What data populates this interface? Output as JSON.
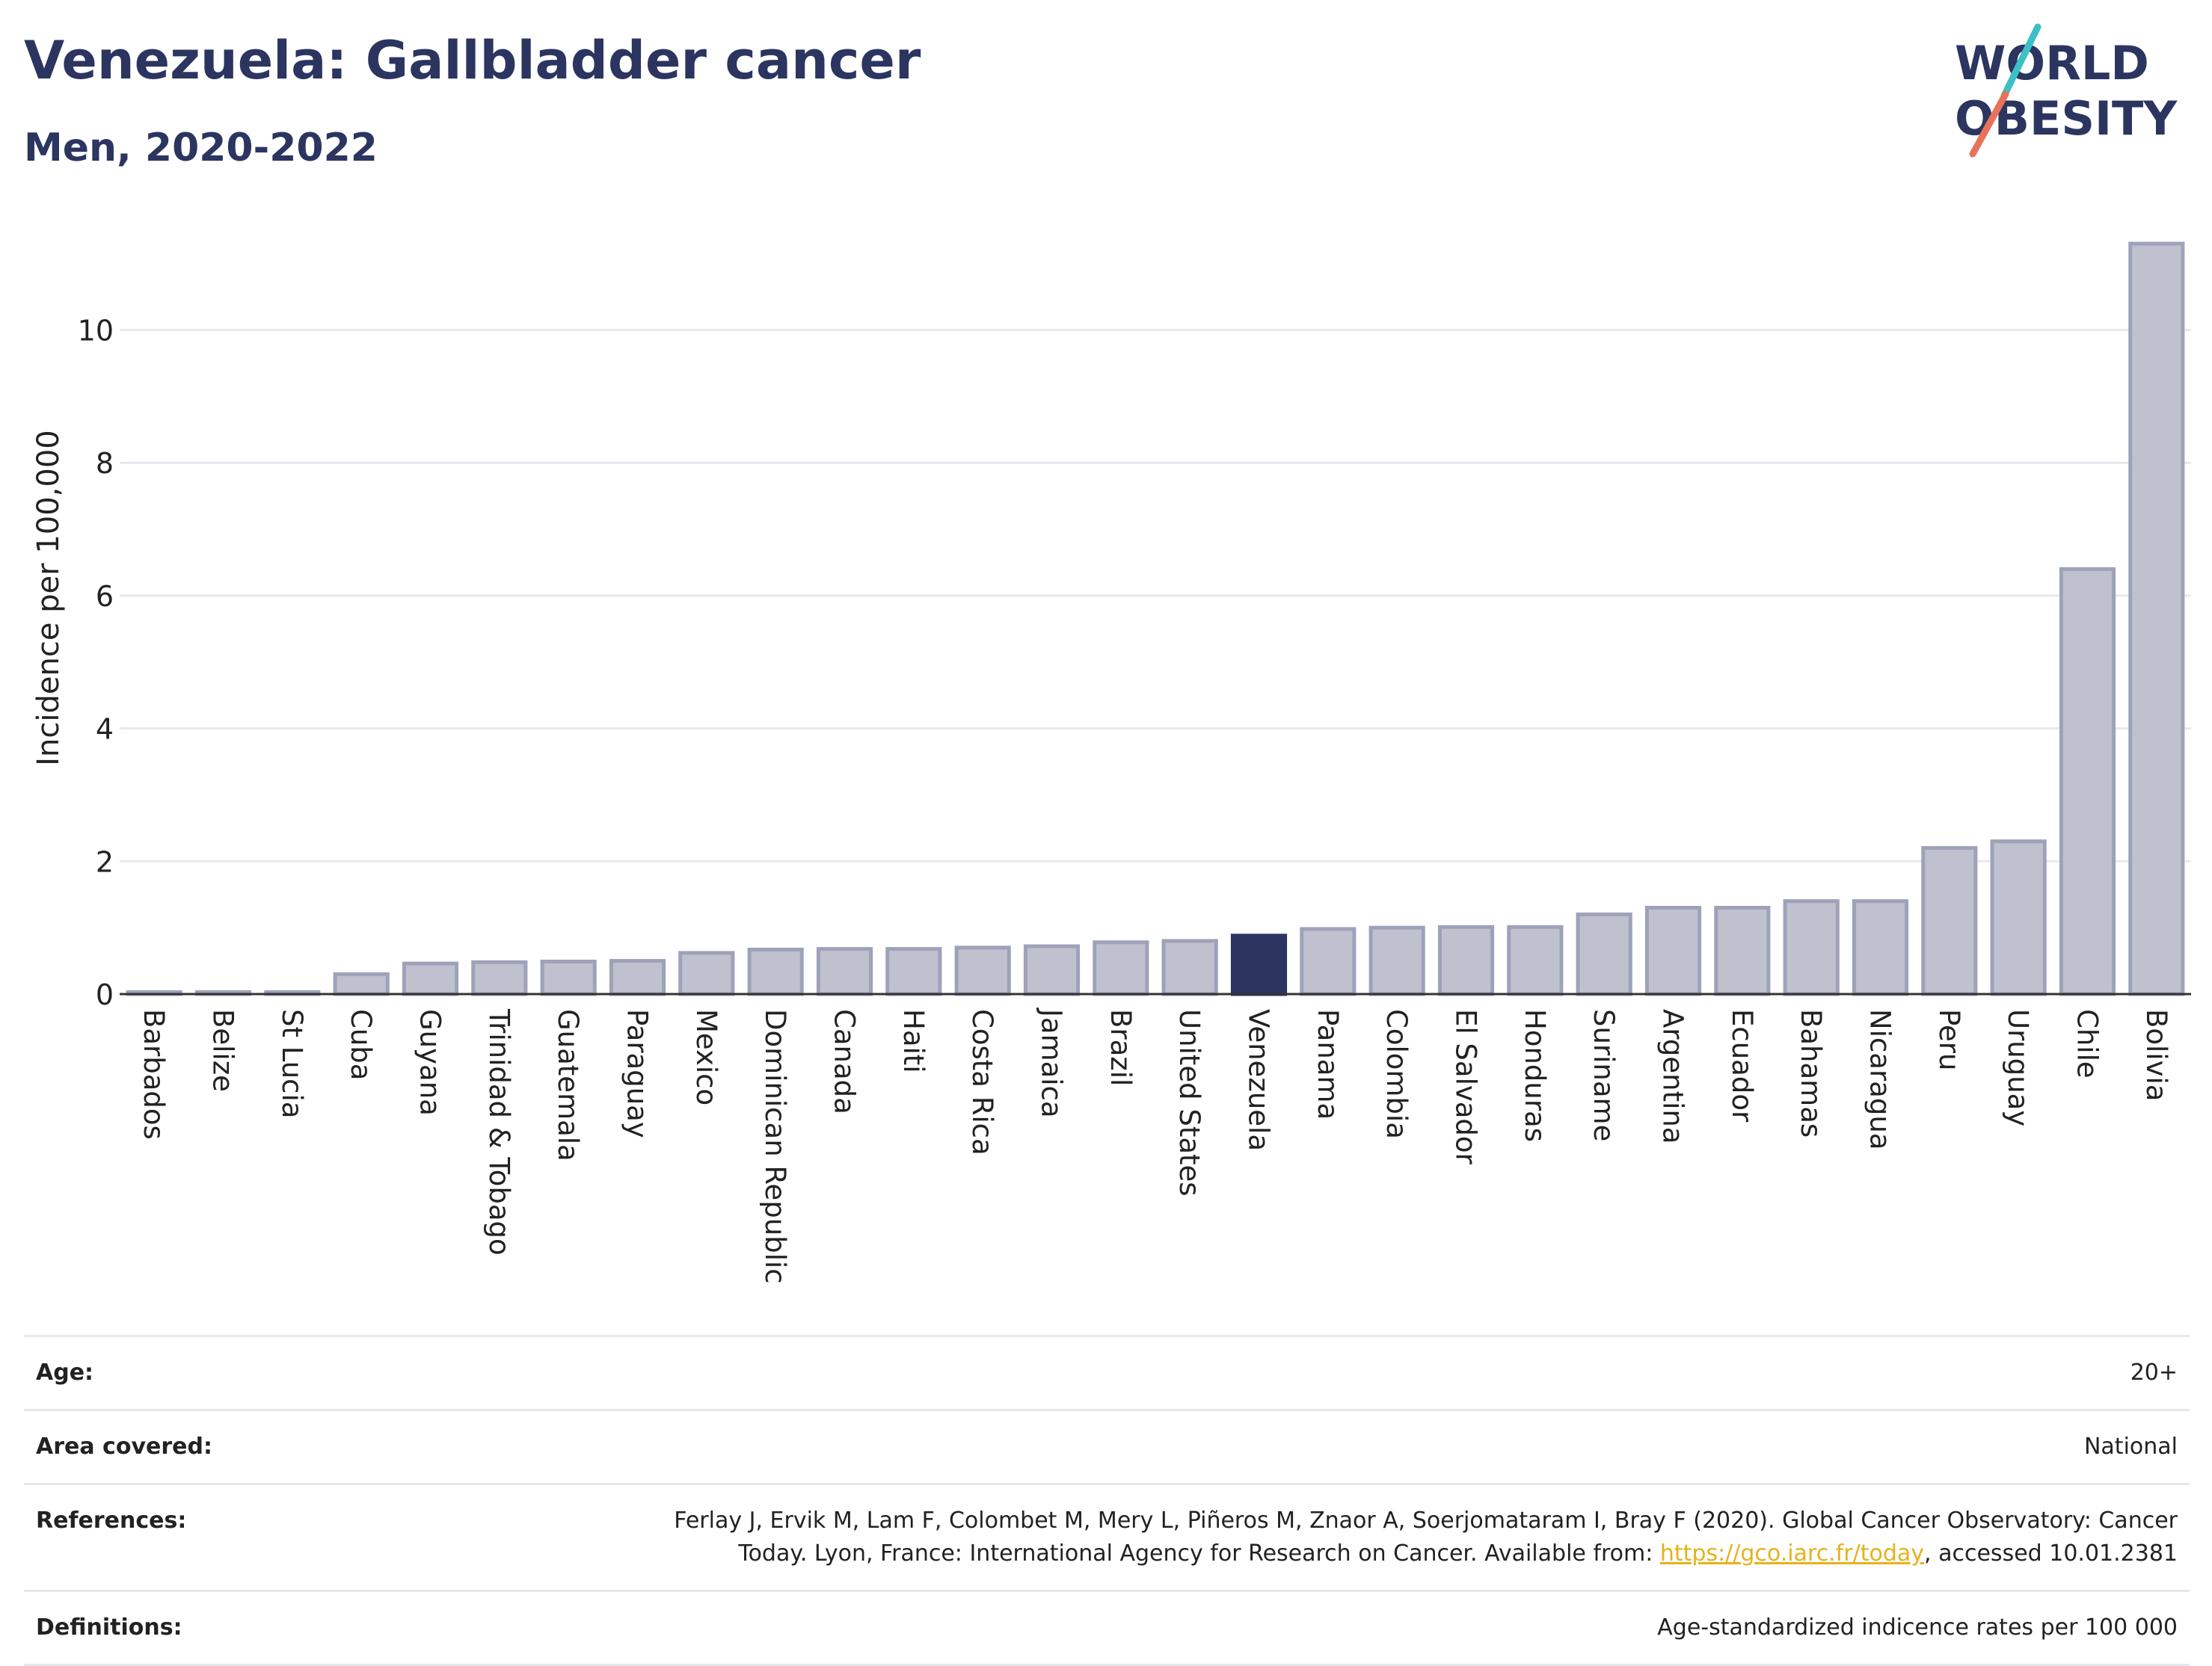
{
  "header": {
    "title": "Venezuela: Gallbladder cancer",
    "subtitle": "Men, 2020-2022"
  },
  "logo": {
    "line1": "WORLD",
    "line2": "OBESITY",
    "colors": {
      "text": "#2b3560",
      "slash_top": "#3cc0c6",
      "slash_bottom": "#e8735a"
    }
  },
  "chart_data": {
    "type": "bar",
    "title": "",
    "xlabel": "",
    "ylabel": "Incidence per 100,000",
    "ylim": [
      0,
      11.3
    ],
    "yticks": [
      0,
      2,
      4,
      6,
      8,
      10
    ],
    "grid": true,
    "highlight": "Venezuela",
    "colors": {
      "bar": "#bfc1cf",
      "bar_edge": "#9ea2b9",
      "highlight": "#2b3560",
      "grid": "#e6e9ee",
      "axis": "#333333"
    },
    "categories": [
      "Barbados",
      "Belize",
      "St Lucia",
      "Cuba",
      "Guyana",
      "Trinidad & Tobago",
      "Guatemala",
      "Paraguay",
      "Mexico",
      "Dominican Republic",
      "Canada",
      "Haiti",
      "Costa Rica",
      "Jamaica",
      "Brazil",
      "United States",
      "Venezuela",
      "Panama",
      "Colombia",
      "El Salvador",
      "Honduras",
      "Suriname",
      "Argentina",
      "Ecuador",
      "Bahamas",
      "Nicaragua",
      "Peru",
      "Uruguay",
      "Chile",
      "Bolivia"
    ],
    "values": [
      0.03,
      0.03,
      0.03,
      0.3,
      0.46,
      0.48,
      0.49,
      0.5,
      0.62,
      0.67,
      0.68,
      0.68,
      0.7,
      0.72,
      0.78,
      0.8,
      0.88,
      0.98,
      1.0,
      1.01,
      1.01,
      1.2,
      1.3,
      1.3,
      1.4,
      1.4,
      2.2,
      2.3,
      6.4,
      11.3
    ]
  },
  "meta": {
    "age": {
      "label": "Age:",
      "value": "20+"
    },
    "area": {
      "label": "Area covered:",
      "value": "National"
    },
    "references": {
      "label": "References:",
      "line1": "Ferlay J, Ervik M, Lam F, Colombet M, Mery L, Piñeros M, Znaor A, Soerjomataram I, Bray F (2020). Global Cancer Observatory: Cancer",
      "line2_prefix": "Today. Lyon, France: International Agency for Research on Cancer. Available from: ",
      "link": "https://gco.iarc.fr/today",
      "line2_suffix": ", accessed 10.01.2381"
    },
    "definitions": {
      "label": "Definitions:",
      "value": "Age-standardized indicence rates per 100 000"
    }
  }
}
